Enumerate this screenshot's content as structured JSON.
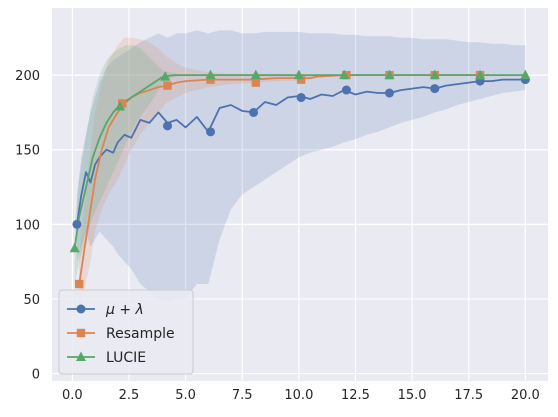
{
  "chart_data": {
    "type": "line",
    "title": "",
    "xlabel": "",
    "ylabel": "",
    "xlim": [
      -0.9,
      21.0
    ],
    "ylim": [
      -5,
      245
    ],
    "xticks": [
      0.0,
      2.5,
      5.0,
      7.5,
      10.0,
      12.5,
      15.0,
      17.5,
      20.0
    ],
    "xtick_labels": [
      "0.0",
      "2.5",
      "5.0",
      "7.5",
      "10.0",
      "12.5",
      "15.0",
      "17.5",
      "20.0"
    ],
    "yticks": [
      0,
      50,
      100,
      150,
      200
    ],
    "ytick_labels": [
      "0",
      "50",
      "100",
      "150",
      "200"
    ],
    "grid": true,
    "background": "#eaeaf2",
    "legend_position": "lower-left",
    "series": [
      {
        "name": "μ + λ",
        "color": "#4c72b0",
        "marker": "circle",
        "x": [
          0.2,
          0.4,
          0.6,
          0.8,
          1.0,
          1.2,
          1.5,
          1.8,
          2.0,
          2.3,
          2.6,
          3.0,
          3.4,
          3.8,
          4.2,
          4.6,
          5.0,
          5.5,
          6.0,
          6.5,
          7.0,
          7.5,
          8.0,
          8.5,
          9.0,
          9.5,
          10.0,
          10.5,
          11.0,
          11.5,
          12.0,
          12.5,
          13.0,
          13.5,
          14.0,
          14.5,
          15.0,
          15.5,
          16.0,
          16.5,
          17.0,
          17.5,
          18.0,
          18.5,
          19.0,
          19.5,
          20.0
        ],
        "y": [
          100,
          120,
          135,
          128,
          140,
          145,
          150,
          148,
          155,
          160,
          158,
          170,
          168,
          175,
          168,
          170,
          165,
          172,
          162,
          178,
          180,
          176,
          175,
          182,
          180,
          185,
          186,
          184,
          187,
          186,
          190,
          187,
          189,
          188,
          188,
          190,
          191,
          192,
          191,
          193,
          194,
          195,
          196,
          196,
          197,
          197,
          197
        ],
        "upper": [
          120,
          145,
          160,
          175,
          185,
          195,
          205,
          210,
          212,
          215,
          218,
          222,
          225,
          228,
          225,
          228,
          228,
          230,
          228,
          230,
          230,
          228,
          228,
          229,
          229,
          229,
          229,
          228,
          228,
          228,
          227,
          227,
          226,
          226,
          226,
          225,
          225,
          224,
          224,
          224,
          223,
          222,
          222,
          221,
          221,
          220,
          220
        ],
        "lower": [
          75,
          85,
          95,
          85,
          90,
          95,
          90,
          85,
          80,
          75,
          70,
          60,
          55,
          50,
          48,
          50,
          50,
          60,
          60,
          90,
          110,
          120,
          125,
          130,
          135,
          140,
          145,
          148,
          150,
          152,
          155,
          157,
          160,
          162,
          165,
          168,
          170,
          172,
          175,
          177,
          180,
          182,
          184,
          186,
          188,
          189,
          190
        ],
        "markers_x": [
          0.2,
          4.2,
          6.1,
          8.0,
          10.1,
          12.1,
          14.0,
          16.0,
          18.0,
          20.0
        ],
        "markers_y": [
          100,
          166,
          162,
          175,
          185,
          190,
          188,
          191,
          196,
          197
        ]
      },
      {
        "name": "Resample",
        "color": "#dd8452",
        "marker": "square",
        "x": [
          0.3,
          0.5,
          0.8,
          1.0,
          1.3,
          1.6,
          2.0,
          2.3,
          2.6,
          3.0,
          3.4,
          3.8,
          4.2,
          4.6,
          5.0,
          6.0,
          7.0,
          8.0,
          9.0,
          10.0,
          10.5,
          10.8,
          12.0,
          14.0,
          16.0,
          18.0
        ],
        "y": [
          60,
          80,
          110,
          130,
          150,
          165,
          175,
          181,
          185,
          188,
          190,
          192,
          193,
          195,
          196,
          197,
          197,
          197,
          198,
          198,
          198,
          199,
          200,
          200,
          200,
          200
        ],
        "upper": [
          80,
          110,
          150,
          175,
          195,
          210,
          220,
          225,
          225,
          224,
          222,
          218,
          212,
          208,
          205,
          202,
          201,
          201,
          201,
          200,
          200,
          200,
          200,
          200,
          200,
          200
        ],
        "lower": [
          40,
          55,
          75,
          95,
          110,
          120,
          130,
          140,
          150,
          160,
          168,
          175,
          182,
          185,
          188,
          192,
          194,
          195,
          196,
          196,
          197,
          198,
          200,
          200,
          200,
          200
        ],
        "markers_x": [
          0.3,
          2.2,
          4.2,
          6.1,
          8.1,
          10.1,
          12.1,
          14.0,
          16.0,
          18.0
        ],
        "markers_y": [
          60,
          181,
          193,
          197,
          195,
          197,
          200,
          200,
          200,
          200
        ]
      },
      {
        "name": "LUCIE",
        "color": "#55a868",
        "marker": "triangle",
        "x": [
          0.1,
          0.3,
          0.6,
          0.9,
          1.2,
          1.5,
          1.8,
          2.1,
          2.4,
          2.7,
          3.0,
          3.4,
          3.8,
          4.0,
          4.5,
          5.0,
          6.0,
          8.0,
          10.0,
          12.0,
          14.0,
          16.0,
          18.0,
          20.0
        ],
        "y": [
          84,
          105,
          125,
          145,
          158,
          168,
          175,
          180,
          183,
          186,
          189,
          193,
          197,
          199,
          200,
          200,
          200,
          200,
          200,
          200,
          200,
          200,
          200,
          200
        ],
        "upper": [
          100,
          130,
          160,
          185,
          200,
          210,
          215,
          218,
          220,
          220,
          218,
          212,
          206,
          203,
          201,
          200,
          200,
          200,
          200,
          200,
          200,
          200,
          200,
          200
        ],
        "lower": [
          60,
          75,
          90,
          105,
          115,
          125,
          135,
          145,
          155,
          165,
          172,
          180,
          190,
          195,
          199,
          200,
          200,
          200,
          200,
          200,
          200,
          200,
          200,
          200
        ],
        "markers_x": [
          0.1,
          2.1,
          4.1,
          6.1,
          8.1,
          10.0,
          12.0,
          14.0,
          16.0,
          18.0,
          20.0
        ],
        "markers_y": [
          84,
          179,
          199,
          200,
          200,
          200,
          200,
          200,
          200,
          200,
          200
        ]
      }
    ]
  }
}
